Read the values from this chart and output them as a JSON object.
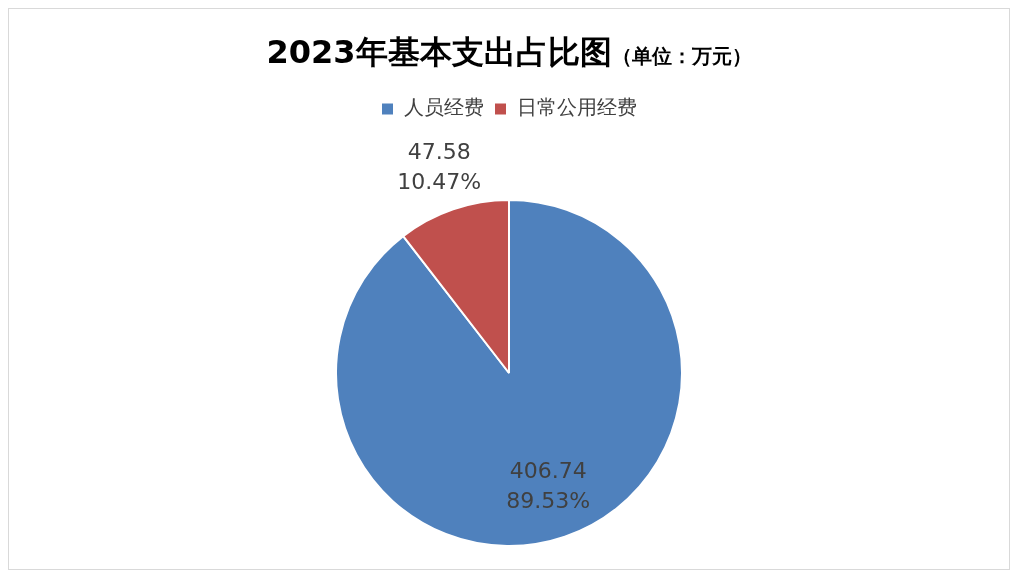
{
  "chart_data": {
    "type": "pie",
    "title": "2023年基本支出占比图",
    "subtitle": "（单位：万元）",
    "categories": [
      "人员经费",
      "日常公用经费"
    ],
    "values": [
      406.74,
      47.58
    ],
    "colors": [
      "#4f81bd",
      "#c0504d"
    ],
    "value_labels": [
      "406.74\n89.53%",
      "47.58\n10.47%"
    ],
    "legend": "top"
  }
}
